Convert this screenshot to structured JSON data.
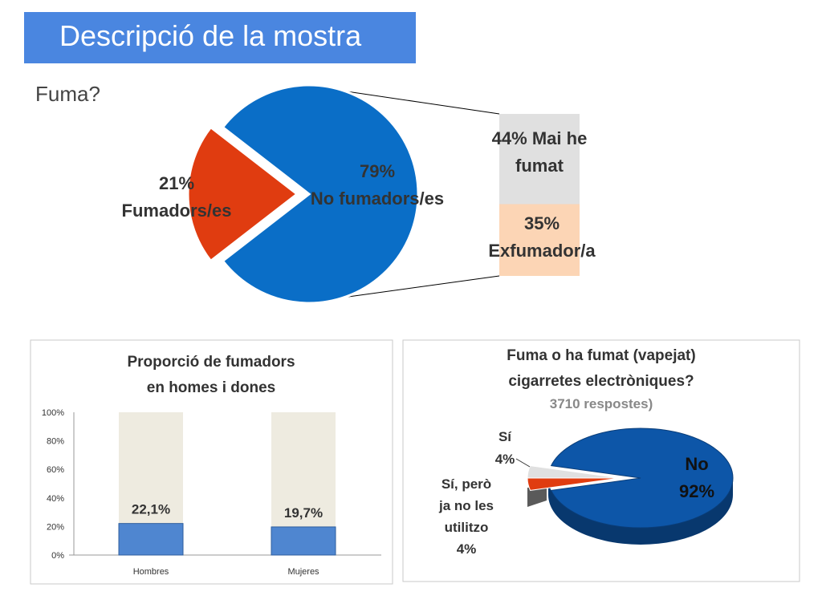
{
  "slide": {
    "title": "Descripció de la mostra",
    "question": "Fuma?"
  },
  "colors": {
    "title_bg": "#4a86e0",
    "smokers": "#e03c10",
    "non_smokers": "#0a6ec7",
    "never": "#e0e0e0",
    "ex": "#fcd5b5",
    "bar_fill": "#4f86d0",
    "bar_bg": "#eeebe0",
    "ecig_no": "#0d56a8"
  },
  "chart_data": [
    {
      "type": "pie",
      "slices": [
        {
          "label": "Fumadors/es",
          "value": 21,
          "value_label": "21%"
        },
        {
          "label": "No fumadors/es",
          "value": 79,
          "value_label": "79%"
        }
      ],
      "breakdown": {
        "type": "bar",
        "of": "No fumadors/es",
        "segments": [
          {
            "label": "Mai he fumat",
            "value": 44,
            "value_label": "44%"
          },
          {
            "label": "Exfumador/a",
            "value": 35,
            "value_label": "35%"
          }
        ]
      }
    },
    {
      "type": "bar",
      "title_lines": [
        "Proporció de fumadors",
        "en homes i dones"
      ],
      "categories": [
        "Hombres",
        "Mujeres"
      ],
      "values": [
        22.1,
        19.7
      ],
      "value_labels": [
        "22,1%",
        "19,7%"
      ],
      "ylim": [
        0,
        100
      ],
      "yticks": [
        "0%",
        "20%",
        "40%",
        "60%",
        "80%",
        "100%"
      ]
    },
    {
      "type": "pie",
      "title_lines": [
        "Fuma o ha fumat (vapejat)",
        "cigarretes electròniques?"
      ],
      "subtitle": "3710 respostes)",
      "slices": [
        {
          "label_lines": [
            "No"
          ],
          "value": 92,
          "value_label": "92%"
        },
        {
          "label_lines": [
            "Sí"
          ],
          "value": 4,
          "value_label": "4%"
        },
        {
          "label_lines": [
            "Sí, però",
            "ja no les",
            "utilitzo"
          ],
          "value": 4,
          "value_label": "4%"
        }
      ]
    }
  ]
}
